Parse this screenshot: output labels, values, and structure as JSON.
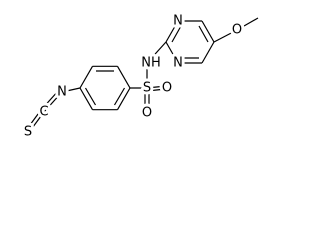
{
  "atoms": {
    "labels": [
      "S",
      "C",
      "N",
      "S",
      "O",
      "O",
      "NH",
      "N",
      "N",
      "O"
    ]
  }
}
